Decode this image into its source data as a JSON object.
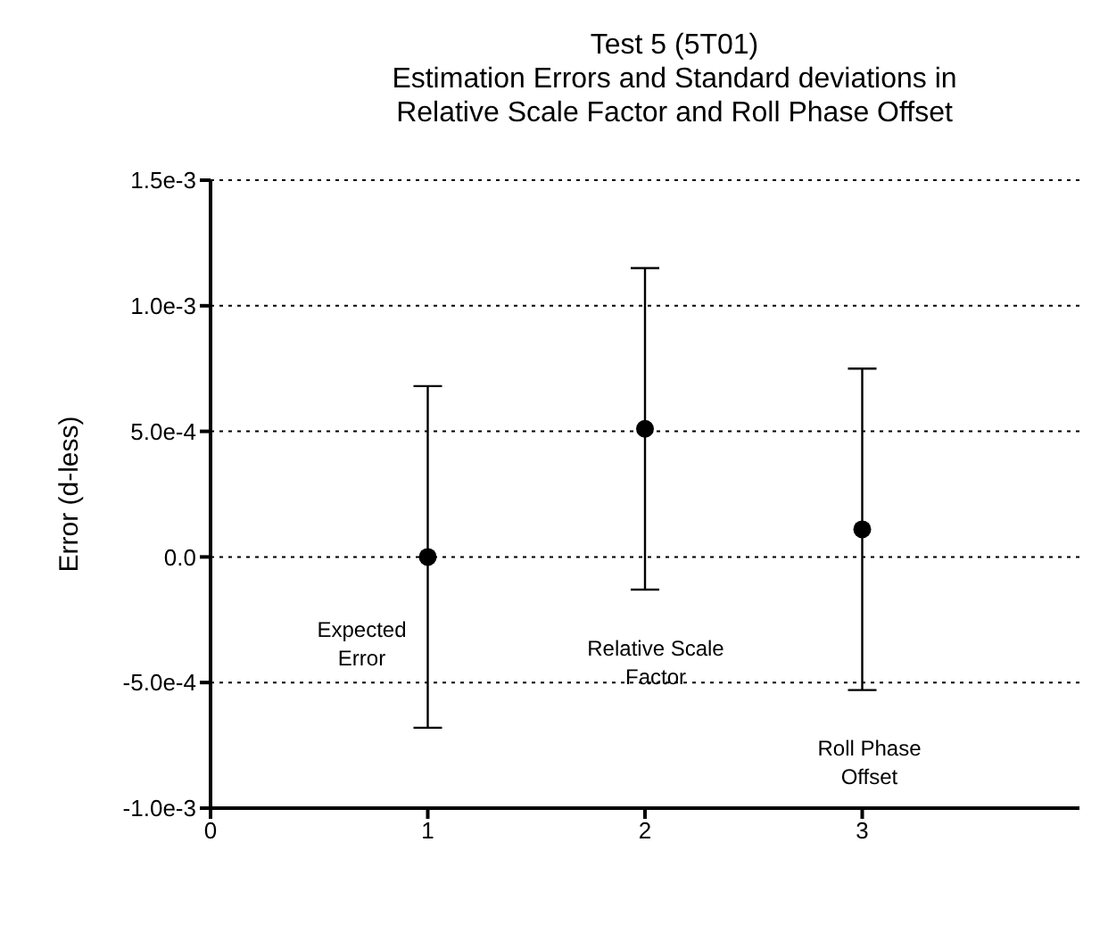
{
  "chart_data": {
    "type": "scatter",
    "title": "Test 5 (5T01)",
    "subtitle": "Estimation Errors and Standard deviations in Relative Scale Factor and Roll Phase Offset",
    "ylabel": "Error (d-less)",
    "x": [
      1,
      2,
      3
    ],
    "values": [
      0,
      0.00051,
      0.00011
    ],
    "errors": [
      0.00068,
      0.00064,
      0.00064
    ],
    "color": "#000000",
    "marker": "circle",
    "xlim": [
      0,
      4
    ],
    "xticks": [
      0,
      1,
      2,
      3
    ],
    "ylim": [
      -0.001,
      0.0015
    ],
    "yticks": [
      {
        "value": -0.001,
        "label": "-1.0e-3"
      },
      {
        "value": -0.0005,
        "label": "-5.0e-4"
      },
      {
        "value": 0,
        "label": "0.0"
      },
      {
        "value": 0.0005,
        "label": "5.0e-4"
      },
      {
        "value": 0.001,
        "label": "1.0e-3"
      },
      {
        "value": 0.0015,
        "label": "1.5e-3"
      }
    ],
    "grid": "y",
    "annotations": [
      "Expected Error",
      "Relative Scale Factor",
      "Roll Phase Offset"
    ]
  }
}
